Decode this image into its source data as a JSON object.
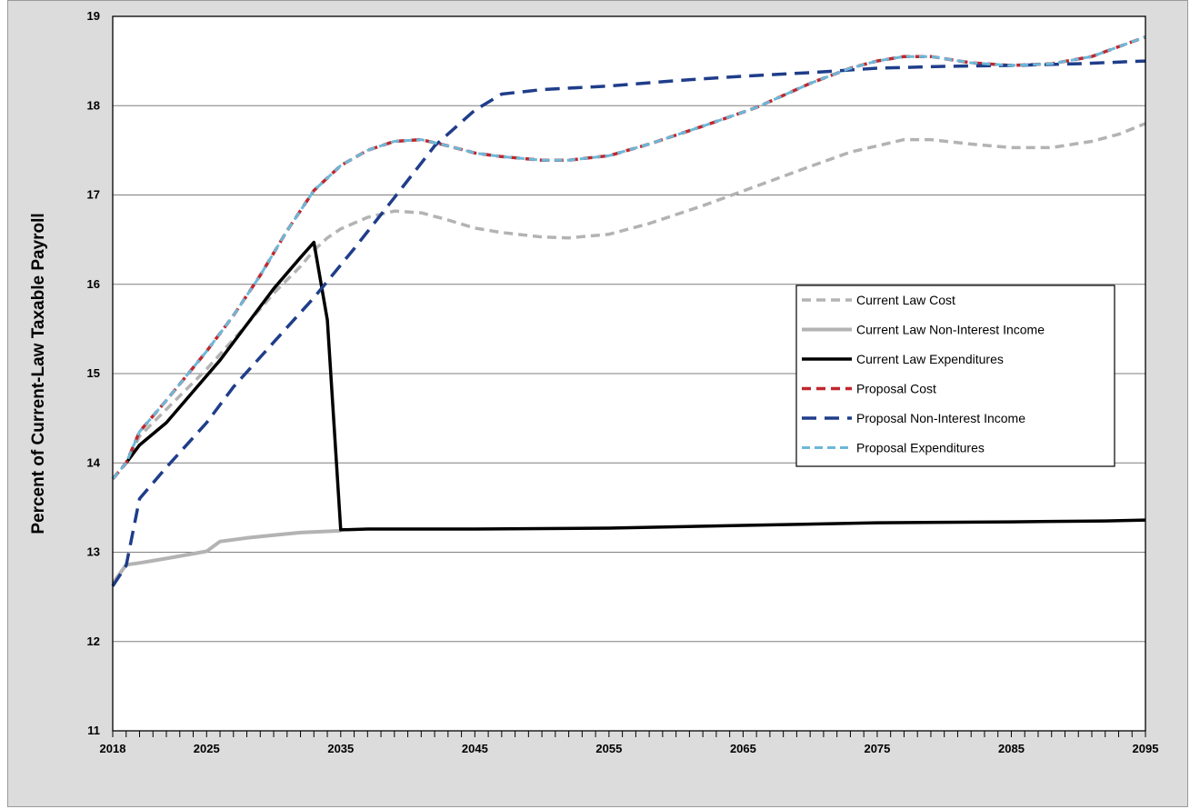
{
  "chart_data": {
    "type": "line",
    "title": "",
    "xlabel": "",
    "ylabel": "Percent of Current-Law Taxable Payroll",
    "xlim": [
      2018,
      2095
    ],
    "ylim": [
      11,
      19
    ],
    "x_ticks": [
      "2018",
      "2025",
      "2035",
      "2045",
      "2055",
      "2065",
      "2075",
      "2085",
      "2095"
    ],
    "y_ticks": [
      "11",
      "12",
      "13",
      "14",
      "15",
      "16",
      "17",
      "18",
      "19"
    ],
    "grid": "horizontal",
    "legend_position": "right",
    "series": [
      {
        "name": "Current Law Cost",
        "color": "#b3b3b3",
        "dash": "dashed",
        "points": [
          [
            2018,
            13.82
          ],
          [
            2019,
            14.0
          ],
          [
            2020,
            14.3
          ],
          [
            2022,
            14.6
          ],
          [
            2025,
            15.05
          ],
          [
            2028,
            15.55
          ],
          [
            2030,
            15.9
          ],
          [
            2032,
            16.2
          ],
          [
            2033,
            16.38
          ],
          [
            2034,
            16.52
          ],
          [
            2035,
            16.62
          ],
          [
            2037,
            16.75
          ],
          [
            2039,
            16.82
          ],
          [
            2041,
            16.8
          ],
          [
            2043,
            16.72
          ],
          [
            2045,
            16.63
          ],
          [
            2047,
            16.58
          ],
          [
            2050,
            16.53
          ],
          [
            2052,
            16.52
          ],
          [
            2055,
            16.56
          ],
          [
            2058,
            16.68
          ],
          [
            2062,
            16.88
          ],
          [
            2066,
            17.1
          ],
          [
            2070,
            17.32
          ],
          [
            2073,
            17.48
          ],
          [
            2075,
            17.55
          ],
          [
            2077,
            17.62
          ],
          [
            2079,
            17.62
          ],
          [
            2082,
            17.57
          ],
          [
            2085,
            17.53
          ],
          [
            2088,
            17.53
          ],
          [
            2091,
            17.6
          ],
          [
            2093,
            17.68
          ],
          [
            2095,
            17.8
          ]
        ]
      },
      {
        "name": "Current Law Non-Interest Income",
        "color": "#b3b3b3",
        "dash": "solid",
        "points": [
          [
            2018,
            12.65
          ],
          [
            2019,
            12.86
          ],
          [
            2020,
            12.88
          ],
          [
            2022,
            12.93
          ],
          [
            2025,
            13.01
          ],
          [
            2026,
            13.12
          ],
          [
            2028,
            13.16
          ],
          [
            2030,
            13.19
          ],
          [
            2032,
            13.22
          ],
          [
            2035,
            13.24
          ]
        ]
      },
      {
        "name": "Current Law Expenditures",
        "color": "#000000",
        "dash": "solid",
        "points": [
          [
            2019,
            14.0
          ],
          [
            2020,
            14.2
          ],
          [
            2022,
            14.45
          ],
          [
            2024,
            14.8
          ],
          [
            2026,
            15.15
          ],
          [
            2028,
            15.55
          ],
          [
            2030,
            15.95
          ],
          [
            2032,
            16.3
          ],
          [
            2033,
            16.47
          ],
          [
            2034,
            15.6
          ],
          [
            2035,
            13.25
          ],
          [
            2037,
            13.26
          ],
          [
            2045,
            13.26
          ],
          [
            2055,
            13.27
          ],
          [
            2065,
            13.3
          ],
          [
            2075,
            13.33
          ],
          [
            2085,
            13.34
          ],
          [
            2092,
            13.35
          ],
          [
            2095,
            13.36
          ]
        ]
      },
      {
        "name": "Proposal Cost",
        "color": "#c0272d",
        "dash": "dashed",
        "points": [
          [
            2018,
            13.82
          ],
          [
            2019,
            14.0
          ],
          [
            2020,
            14.35
          ],
          [
            2022,
            14.7
          ],
          [
            2025,
            15.25
          ],
          [
            2027,
            15.65
          ],
          [
            2029,
            16.1
          ],
          [
            2031,
            16.6
          ],
          [
            2033,
            17.05
          ],
          [
            2035,
            17.33
          ],
          [
            2037,
            17.5
          ],
          [
            2039,
            17.6
          ],
          [
            2041,
            17.62
          ],
          [
            2043,
            17.55
          ],
          [
            2045,
            17.47
          ],
          [
            2047,
            17.43
          ],
          [
            2050,
            17.39
          ],
          [
            2052,
            17.39
          ],
          [
            2055,
            17.44
          ],
          [
            2058,
            17.57
          ],
          [
            2062,
            17.77
          ],
          [
            2066,
            17.98
          ],
          [
            2070,
            18.25
          ],
          [
            2073,
            18.42
          ],
          [
            2075,
            18.5
          ],
          [
            2077,
            18.55
          ],
          [
            2079,
            18.55
          ],
          [
            2082,
            18.48
          ],
          [
            2085,
            18.45
          ],
          [
            2088,
            18.47
          ],
          [
            2091,
            18.55
          ],
          [
            2095,
            18.77
          ]
        ]
      },
      {
        "name": "Proposal Non-Interest Income",
        "color": "#1f3d8a",
        "dash": "dashed",
        "points": [
          [
            2018,
            12.62
          ],
          [
            2019,
            12.85
          ],
          [
            2020,
            13.6
          ],
          [
            2022,
            13.95
          ],
          [
            2025,
            14.45
          ],
          [
            2027,
            14.85
          ],
          [
            2030,
            15.35
          ],
          [
            2033,
            15.85
          ],
          [
            2036,
            16.4
          ],
          [
            2039,
            16.97
          ],
          [
            2042,
            17.55
          ],
          [
            2045,
            17.95
          ],
          [
            2047,
            18.13
          ],
          [
            2050,
            18.18
          ],
          [
            2055,
            18.22
          ],
          [
            2060,
            18.28
          ],
          [
            2065,
            18.33
          ],
          [
            2070,
            18.37
          ],
          [
            2075,
            18.42
          ],
          [
            2080,
            18.44
          ],
          [
            2085,
            18.45
          ],
          [
            2090,
            18.47
          ],
          [
            2095,
            18.5
          ]
        ]
      },
      {
        "name": "Proposal Expenditures",
        "color": "#6cb8d8",
        "dash": "dashed",
        "points": [
          [
            2018,
            13.82
          ],
          [
            2019,
            14.0
          ],
          [
            2020,
            14.35
          ],
          [
            2022,
            14.7
          ],
          [
            2025,
            15.25
          ],
          [
            2027,
            15.65
          ],
          [
            2029,
            16.1
          ],
          [
            2031,
            16.6
          ],
          [
            2033,
            17.05
          ],
          [
            2035,
            17.33
          ],
          [
            2037,
            17.5
          ],
          [
            2039,
            17.6
          ],
          [
            2041,
            17.62
          ],
          [
            2043,
            17.55
          ],
          [
            2045,
            17.47
          ],
          [
            2047,
            17.43
          ],
          [
            2050,
            17.39
          ],
          [
            2052,
            17.39
          ],
          [
            2055,
            17.44
          ],
          [
            2058,
            17.57
          ],
          [
            2062,
            17.77
          ],
          [
            2066,
            17.98
          ],
          [
            2070,
            18.25
          ],
          [
            2073,
            18.42
          ],
          [
            2075,
            18.5
          ],
          [
            2077,
            18.55
          ],
          [
            2079,
            18.55
          ],
          [
            2082,
            18.48
          ],
          [
            2085,
            18.45
          ],
          [
            2088,
            18.47
          ],
          [
            2091,
            18.55
          ],
          [
            2095,
            18.77
          ]
        ]
      }
    ]
  }
}
